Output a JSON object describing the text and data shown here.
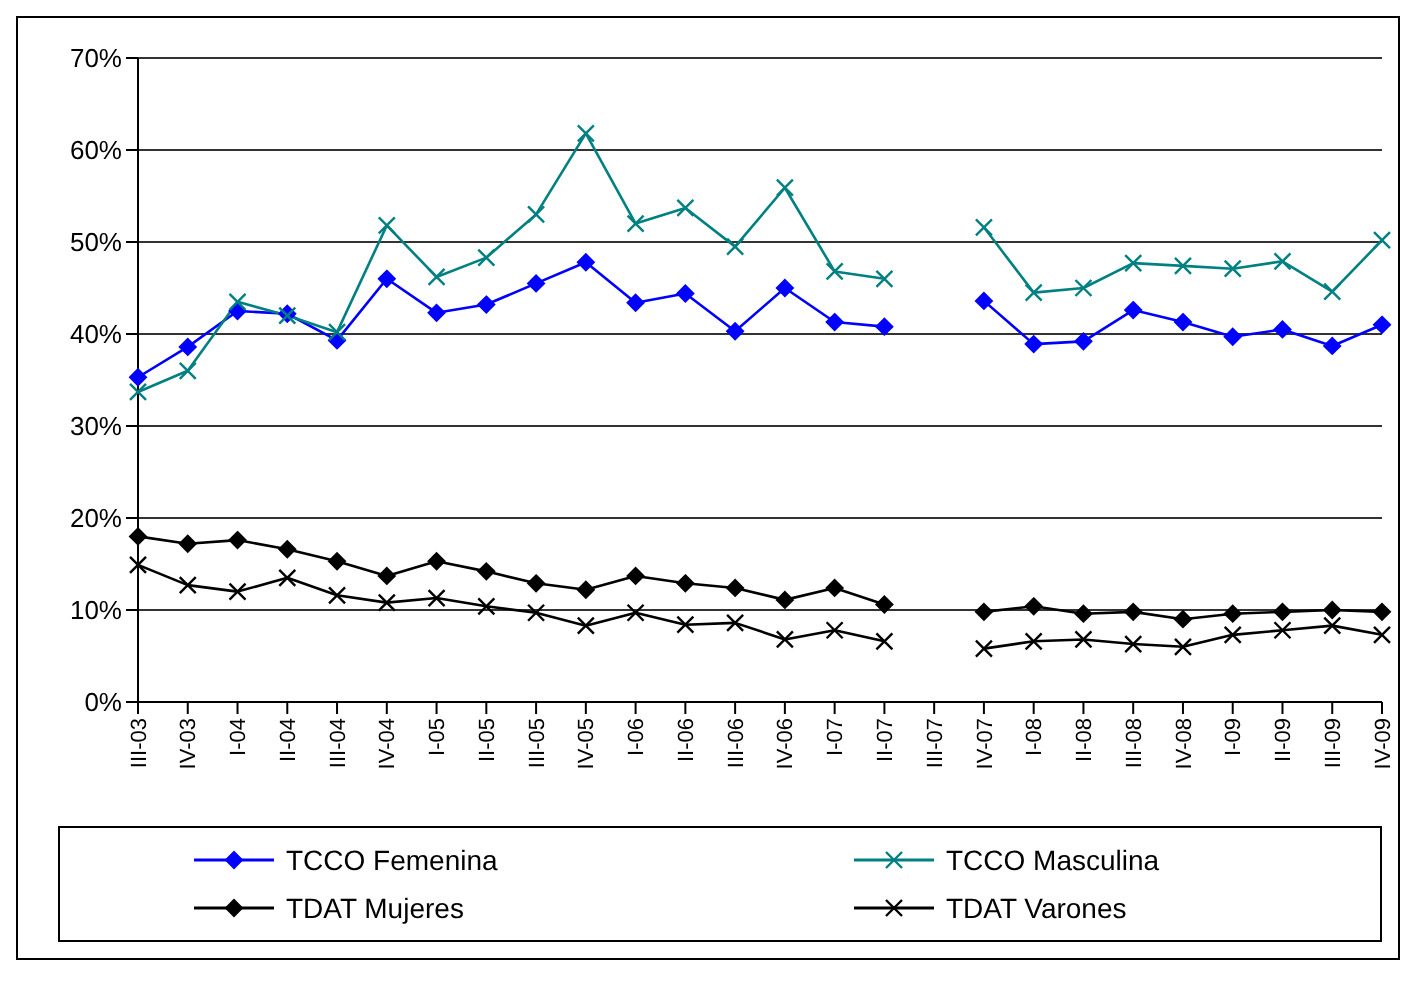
{
  "chart_data": {
    "type": "line",
    "categories": [
      "III-03",
      "IV-03",
      "I-04",
      "II-04",
      "III-04",
      "IV-04",
      "I-05",
      "II-05",
      "III-05",
      "IV-05",
      "I-06",
      "II-06",
      "III-06",
      "IV-06",
      "I-07",
      "II-07",
      "III-07",
      "IV-07",
      "I-08",
      "II-08",
      "III-08",
      "IV-08",
      "I-09",
      "II-09",
      "III-09",
      "IV-09"
    ],
    "series": [
      {
        "name": "TCCO Femenina",
        "color": "#0000ff",
        "marker": "diamond",
        "values": [
          35.3,
          38.6,
          42.5,
          42.2,
          39.3,
          46,
          42.3,
          43.2,
          45.5,
          47.8,
          43.4,
          44.4,
          40.3,
          45,
          41.3,
          40.8,
          null,
          43.6,
          38.9,
          39.2,
          42.6,
          41.3,
          39.7,
          40.5,
          38.7,
          41
        ]
      },
      {
        "name": "TCCO Masculina",
        "color": "#008080",
        "marker": "cross",
        "values": [
          33.7,
          36,
          43.5,
          42,
          40.2,
          51.8,
          46.2,
          48.3,
          53,
          61.8,
          52,
          53.7,
          49.5,
          55.9,
          46.8,
          46,
          null,
          51.6,
          44.5,
          45,
          47.7,
          47.4,
          47.1,
          47.9,
          44.6,
          50.2
        ]
      },
      {
        "name": "TDAT Mujeres",
        "color": "#000000",
        "marker": "diamond",
        "values": [
          18,
          17.2,
          17.6,
          16.6,
          15.3,
          13.7,
          15.3,
          14.2,
          12.9,
          12.2,
          13.7,
          12.9,
          12.4,
          11.1,
          12.4,
          10.6,
          null,
          9.8,
          10.4,
          9.6,
          9.8,
          9,
          9.6,
          9.8,
          10,
          9.8
        ]
      },
      {
        "name": "TDAT Varones",
        "color": "#000000",
        "marker": "cross",
        "values": [
          14.9,
          12.7,
          12,
          13.5,
          11.6,
          10.8,
          11.3,
          10.4,
          9.7,
          8.3,
          9.7,
          8.4,
          8.6,
          6.8,
          7.8,
          6.6,
          null,
          5.8,
          6.6,
          6.8,
          6.3,
          6,
          7.3,
          7.8,
          8.3,
          7.3
        ]
      }
    ],
    "ylim": [
      0,
      70
    ],
    "yticks": [
      {
        "value": 0,
        "label": "0%"
      },
      {
        "value": 10,
        "label": "10%"
      },
      {
        "value": 20,
        "label": "20%"
      },
      {
        "value": 30,
        "label": "30%"
      },
      {
        "value": 40,
        "label": "40%"
      },
      {
        "value": 50,
        "label": "50%"
      },
      {
        "value": 60,
        "label": "60%"
      },
      {
        "value": 70,
        "label": "70%"
      }
    ],
    "grid": "y",
    "legend": "bottom",
    "line_style": "solid"
  }
}
